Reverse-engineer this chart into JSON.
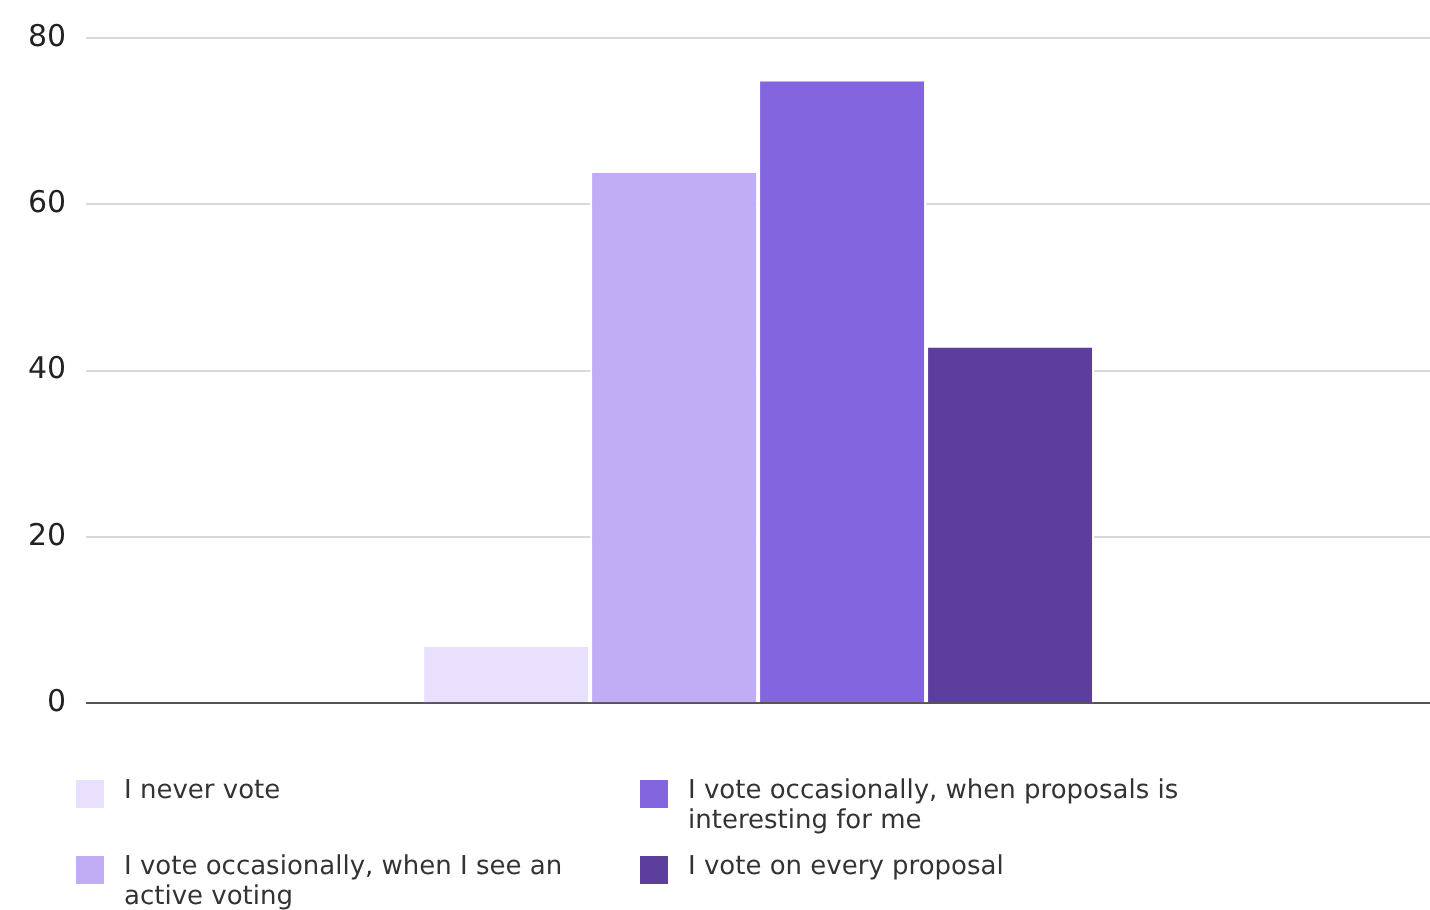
{
  "chart_data": {
    "type": "bar",
    "categories": [
      null
    ],
    "series": [
      {
        "name": "I never vote",
        "color": "#e8e0fc",
        "values": [
          7
        ]
      },
      {
        "name": "I vote occasionally, when I see an active voting",
        "color": "#c0adf5",
        "values": [
          64
        ]
      },
      {
        "name": "I vote occasionally, when proposals is interesting for me",
        "color": "#8465e0",
        "values": [
          75
        ]
      },
      {
        "name": "I vote on every proposal",
        "color": "#5c3f9c",
        "values": [
          43
        ]
      }
    ],
    "ylim": [
      0,
      80
    ],
    "yticks": [
      0,
      20,
      40,
      60,
      80
    ],
    "grid": "y",
    "legend": "bottom"
  }
}
